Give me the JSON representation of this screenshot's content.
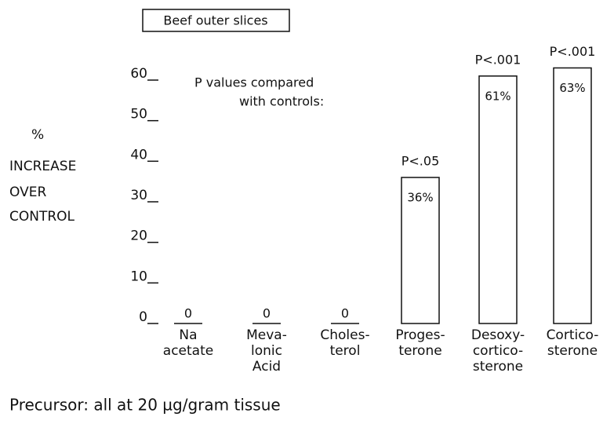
{
  "chart_data": {
    "type": "bar",
    "title": "Beef outer slices",
    "y_label_lines": [
      "%",
      "INCREASE",
      "OVER",
      "CONTROL"
    ],
    "annotation_lines": [
      "P values compared",
      "with controls:"
    ],
    "footer": "Precursor: all at 20 µg/gram tissue",
    "categories": [
      [
        "Na",
        "acetate"
      ],
      [
        "Meva-",
        "lonic",
        "Acid"
      ],
      [
        "Choles-",
        "terol"
      ],
      [
        "Proges-",
        "terone"
      ],
      [
        "Desoxy-",
        "cortico-",
        "sterone"
      ],
      [
        "Cortico-",
        "sterone"
      ]
    ],
    "values": [
      0,
      0,
      0,
      36,
      61,
      63
    ],
    "value_labels": [
      "0",
      "0",
      "0",
      "36%",
      "61%",
      "63%"
    ],
    "p_values": [
      null,
      null,
      null,
      "P<.05",
      "P<.001",
      "P<.001"
    ],
    "color": "#ffffff",
    "ylim": [
      0,
      60
    ],
    "yticks": [
      0,
      10,
      20,
      30,
      40,
      50,
      60
    ]
  }
}
